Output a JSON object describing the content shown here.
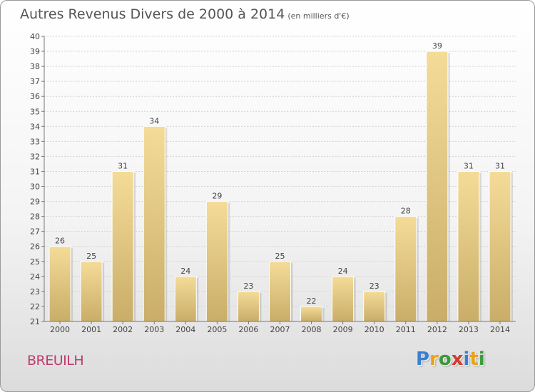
{
  "header": {
    "title": "Autres Revenus Divers de 2000 à 2014",
    "subtitle": "(en milliers d'€)"
  },
  "footer": {
    "commune": "BREUILH",
    "logo_letters": [
      {
        "char": "P",
        "color": "#3a7fd0"
      },
      {
        "char": "r",
        "color": "#e8a21a"
      },
      {
        "char": "o",
        "color": "#3a9a3a"
      },
      {
        "char": "x",
        "color": "#d63a2a"
      },
      {
        "char": "i",
        "color": "#3a7fd0"
      },
      {
        "char": "t",
        "color": "#e8a21a"
      },
      {
        "char": "i",
        "color": "#3a9a3a"
      }
    ]
  },
  "chart_data": {
    "type": "bar",
    "categories": [
      "2000",
      "2001",
      "2002",
      "2003",
      "2004",
      "2005",
      "2006",
      "2007",
      "2008",
      "2009",
      "2010",
      "2011",
      "2012",
      "2013",
      "2014"
    ],
    "values": [
      26,
      25,
      31,
      34,
      24,
      29,
      23,
      25,
      22,
      24,
      23,
      28,
      39,
      31,
      31
    ],
    "ylim": [
      21,
      40
    ],
    "ytick_step": 1,
    "grid": true,
    "bar_color_top": "#f4dc98",
    "bar_color_bottom": "#c9ad68"
  }
}
